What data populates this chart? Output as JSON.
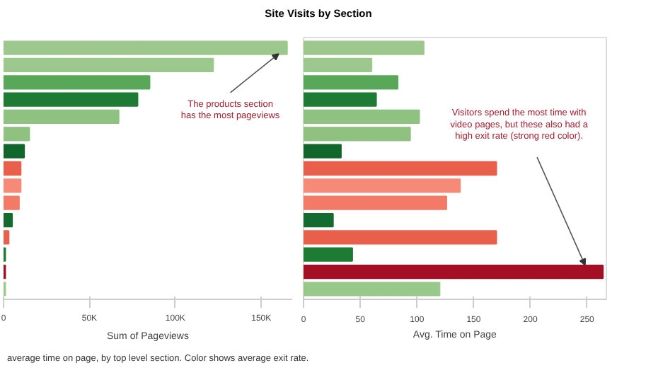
{
  "chart_data": [
    {
      "type": "bar",
      "orientation": "horizontal",
      "title": "Site Visits by Section",
      "xlabel": "Sum of Pageviews",
      "categories": [
        null,
        null,
        null,
        null,
        null,
        null,
        null,
        null,
        null,
        null,
        null,
        null,
        null,
        null,
        null
      ],
      "values": [
        165000,
        122000,
        85000,
        78000,
        67000,
        15000,
        12000,
        10000,
        10000,
        9000,
        5000,
        3000,
        1000,
        1000,
        1000
      ],
      "colors": [
        "#9dc88d",
        "#9dc88d",
        "#59a85a",
        "#1e7b34",
        "#8fc180",
        "#8fc180",
        "#11662c",
        "#e8604c",
        "#f58a78",
        "#f47a68",
        "#136b2f",
        "#e8604c",
        "#1e7b34",
        "#a50f26",
        "#98c98a"
      ],
      "xlim": [
        0,
        168000
      ],
      "xticks": [
        0,
        {
          "value": 50000,
          "label": "50K"
        },
        {
          "value": 100000,
          "label": "100K"
        },
        {
          "value": 150000,
          "label": "150K"
        }
      ],
      "tick_labels": "x",
      "grid": false,
      "annotations": [
        "The products section has the most pageviews",
        "average time on page, by top level section. Color shows average exit rate."
      ]
    },
    {
      "type": "bar",
      "orientation": "horizontal",
      "xlabel": "Avg. Time on Page",
      "categories": [
        null,
        null,
        null,
        null,
        null,
        null,
        null,
        null,
        null,
        null,
        null,
        null,
        null,
        null,
        null
      ],
      "values": [
        106,
        60,
        83,
        64,
        102,
        94,
        33,
        170,
        138,
        126,
        26,
        170,
        43,
        264,
        120
      ],
      "colors": [
        "#9dc88d",
        "#9dc88d",
        "#59a85a",
        "#1e7b34",
        "#8fc180",
        "#8fc180",
        "#11662c",
        "#e8604c",
        "#f58a78",
        "#f47a68",
        "#136b2f",
        "#e8604c",
        "#1e7b34",
        "#a50f26",
        "#98c98a"
      ],
      "xlim": [
        0,
        267
      ],
      "xticks": [
        0,
        50,
        100,
        150,
        200,
        250
      ],
      "tick_labels": "x",
      "grid": false,
      "annotations": [
        "Visitors spend the most time with video pages, but these also had a high exit rate (strong red color)."
      ]
    }
  ]
}
